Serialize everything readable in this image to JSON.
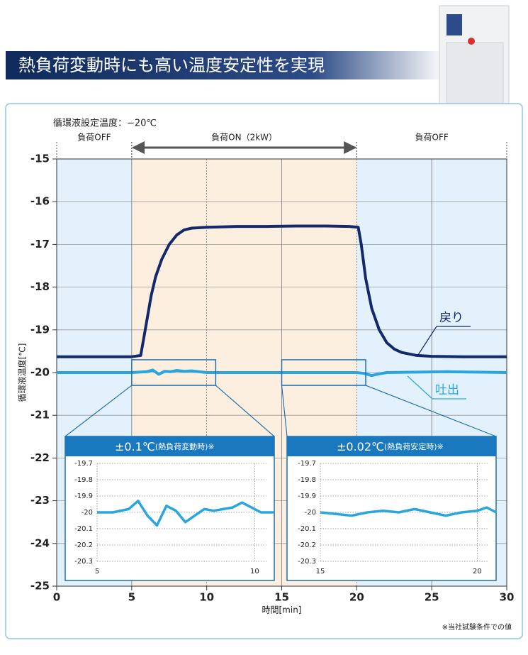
{
  "header": {
    "title": "熱負荷変動時にも高い温度安定性を実現"
  },
  "footnote": "※当社試験条件での値",
  "chart_data": [
    {
      "type": "line",
      "xlabel": "時間[min]",
      "ylabel": "循環液温度[℃]",
      "setpoint": "循環液設定温度：−20℃",
      "phases": [
        {
          "label": "負荷OFF",
          "x": [
            0,
            5
          ]
        },
        {
          "label": "負荷ON（2kW）",
          "x": [
            5,
            20
          ]
        },
        {
          "label": "負荷OFF",
          "x": [
            20,
            30
          ]
        }
      ],
      "bands": [
        {
          "x": [
            0,
            5
          ],
          "color": "#e2f1fb"
        },
        {
          "x": [
            5,
            20
          ],
          "color": "#fcefdf"
        },
        {
          "x": [
            20,
            30
          ],
          "color": "#e2f1fb"
        }
      ],
      "xlim": [
        0,
        30
      ],
      "xticks": [
        0,
        5,
        10,
        15,
        20,
        25,
        30
      ],
      "ylim": [
        -25,
        -15
      ],
      "yticks": [
        -15,
        -16,
        -17,
        -18,
        -19,
        -20,
        -21,
        -22,
        -23,
        -24,
        -25
      ],
      "grid": true,
      "series": [
        {
          "name": "戻り",
          "color": "#13296b",
          "x": [
            0,
            2,
            4,
            5,
            5.6,
            5.8,
            6,
            6.3,
            6.6,
            7,
            7.5,
            8,
            8.5,
            9,
            10,
            12,
            14,
            16,
            18,
            19.5,
            20.1,
            20.3,
            20.6,
            21,
            21.5,
            22,
            22.5,
            23,
            24,
            25,
            27,
            30
          ],
          "values": [
            -19.63,
            -19.63,
            -19.63,
            -19.63,
            -19.6,
            -19.2,
            -18.8,
            -18.2,
            -17.75,
            -17.35,
            -17.0,
            -16.78,
            -16.66,
            -16.62,
            -16.6,
            -16.58,
            -16.58,
            -16.57,
            -16.57,
            -16.58,
            -16.6,
            -17.0,
            -17.8,
            -18.5,
            -19.0,
            -19.3,
            -19.45,
            -19.53,
            -19.6,
            -19.62,
            -19.63,
            -19.63
          ]
        },
        {
          "name": "吐出",
          "color": "#2aa5dd",
          "x": [
            0,
            3,
            5,
            6,
            6.4,
            6.8,
            7.2,
            7.6,
            8,
            8.5,
            9,
            10,
            12,
            15,
            18,
            20,
            20.5,
            21,
            21.5,
            22,
            24,
            26,
            28,
            30
          ],
          "values": [
            -20.0,
            -20.0,
            -20.0,
            -19.98,
            -19.94,
            -20.04,
            -19.97,
            -19.98,
            -19.95,
            -19.97,
            -19.96,
            -20.0,
            -20.0,
            -20.0,
            -20.0,
            -20.0,
            -20.02,
            -20.07,
            -20.03,
            -20.0,
            -19.99,
            -19.98,
            -19.99,
            -20.0
          ]
        }
      ]
    },
    {
      "type": "line",
      "title": "±0.1℃",
      "subtitle": "(熱負荷変動時)※",
      "xlim": [
        5,
        10.6
      ],
      "xticks": [
        5,
        10
      ],
      "ylim": [
        -20.3,
        -19.7
      ],
      "yticks": [
        -19.7,
        -19.8,
        -19.9,
        -20,
        -20.1,
        -20.2,
        -20.3
      ],
      "series": [
        {
          "name": "吐出",
          "color": "#2aa5dd",
          "x": [
            5,
            5.5,
            6,
            6.3,
            6.6,
            6.9,
            7.2,
            7.5,
            7.8,
            8.1,
            8.4,
            8.7,
            9,
            9.3,
            9.6,
            9.9,
            10.2,
            10.6
          ],
          "values": [
            -20.0,
            -20.0,
            -19.98,
            -19.93,
            -20.02,
            -20.08,
            -19.96,
            -19.99,
            -20.06,
            -20.02,
            -19.98,
            -19.99,
            -19.98,
            -19.97,
            -19.94,
            -19.97,
            -20.0,
            -20.0
          ]
        }
      ]
    },
    {
      "type": "line",
      "title": "±0.02℃",
      "subtitle": "(熱負荷安定時)※",
      "xlim": [
        15,
        20.6
      ],
      "xticks": [
        15,
        20
      ],
      "ylim": [
        -20.3,
        -19.7
      ],
      "yticks": [
        -19.7,
        -19.8,
        -19.9,
        -20,
        -20.1,
        -20.2,
        -20.3
      ],
      "series": [
        {
          "name": "吐出",
          "color": "#2aa5dd",
          "x": [
            15,
            15.5,
            16,
            16.5,
            17,
            17.5,
            18,
            18.5,
            19,
            19.5,
            20,
            20.3,
            20.6
          ],
          "values": [
            -20.0,
            -20.01,
            -20.02,
            -20.0,
            -19.99,
            -20.0,
            -19.98,
            -20.0,
            -20.02,
            -20.0,
            -19.99,
            -19.97,
            -20.0
          ]
        }
      ]
    }
  ]
}
